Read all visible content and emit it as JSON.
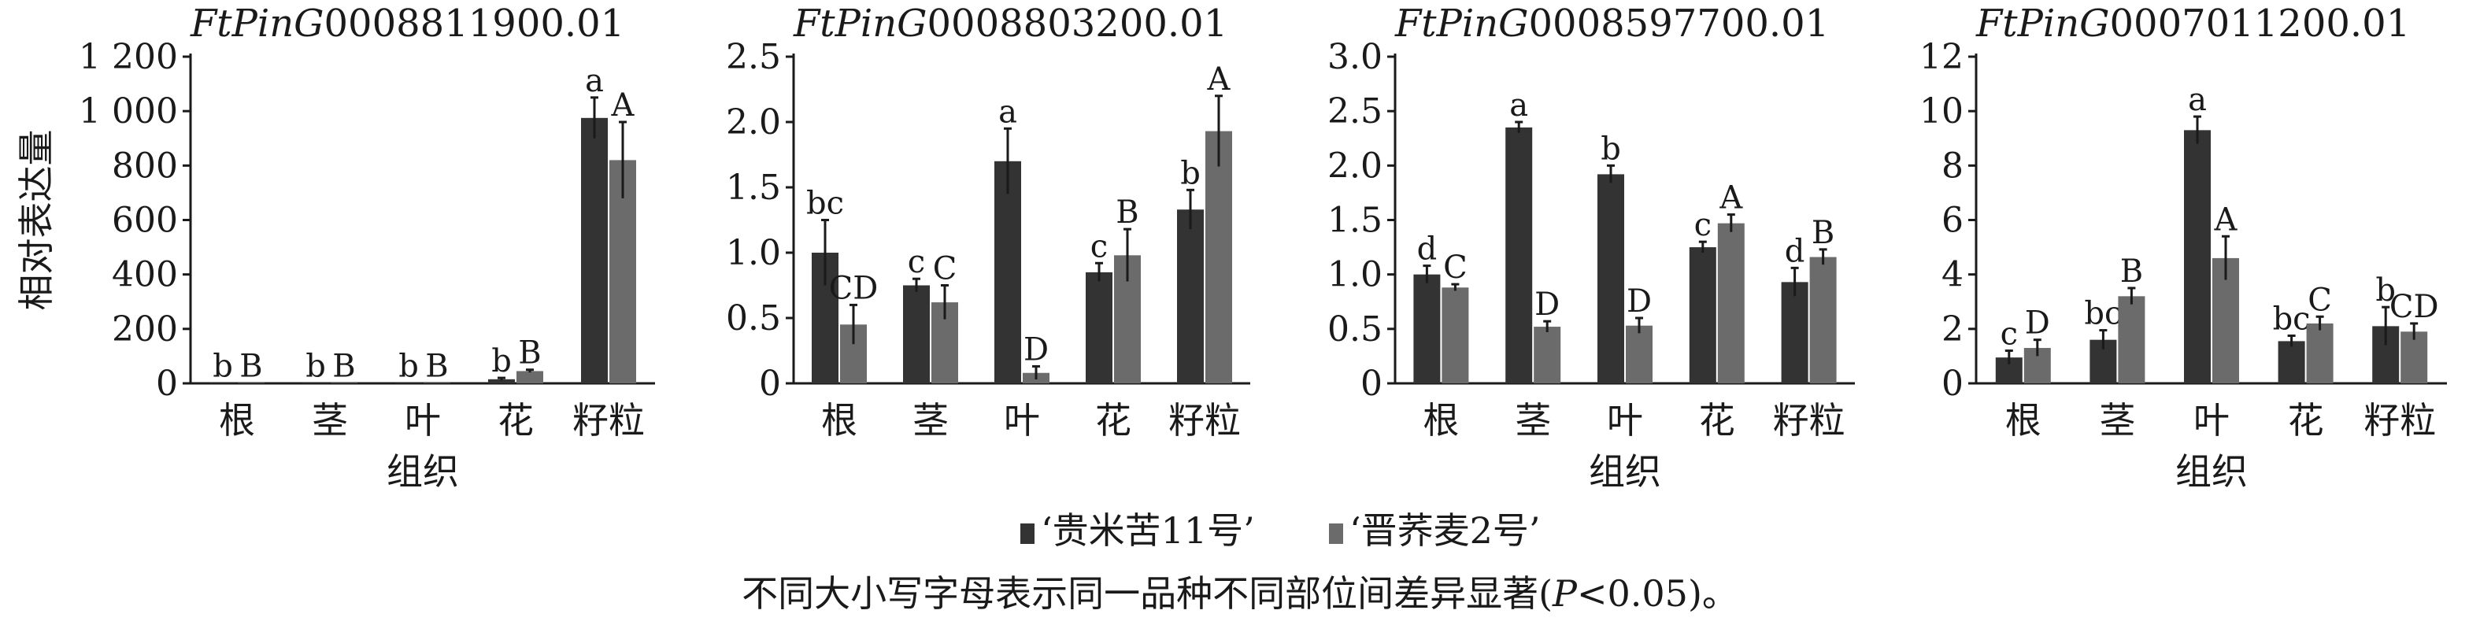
{
  "chart_data": [
    {
      "type": "bar",
      "title": "FtPinG0008811900.01",
      "title_italic": "FtPinG",
      "title_rest": "0008811900.01",
      "categories": [
        "根",
        "茎",
        "叶",
        "花",
        "籽粒"
      ],
      "xlabel": "组织",
      "ylabel": "相对表达量",
      "ylim": [
        0,
        1200
      ],
      "yticks": [
        0,
        200,
        400,
        600,
        800,
        1000,
        1200
      ],
      "ytick_labels": [
        "0",
        "200",
        "400",
        "600",
        "800",
        "1 000",
        "1 200"
      ],
      "series": [
        {
          "name": "‘贵米苦11号’",
          "values": [
            1,
            1,
            1,
            15,
            975
          ],
          "errors": [
            0,
            0,
            0,
            5,
            75
          ],
          "letters": [
            "b",
            "b",
            "b",
            "b",
            "a"
          ]
        },
        {
          "name": "‘晋荞麦2号’",
          "values": [
            1,
            1,
            1,
            45,
            820
          ],
          "errors": [
            0,
            0,
            0,
            5,
            140
          ],
          "letters": [
            "B",
            "B",
            "B",
            "B",
            "A"
          ]
        }
      ]
    },
    {
      "type": "bar",
      "title": "FtPinG0008803200.01",
      "title_italic": "FtPinG",
      "title_rest": "0008803200.01",
      "categories": [
        "根",
        "茎",
        "叶",
        "花",
        "籽粒"
      ],
      "xlabel": "",
      "ylabel": "",
      "ylim": [
        0,
        2.5
      ],
      "yticks": [
        0,
        0.5,
        1.0,
        1.5,
        2.0,
        2.5
      ],
      "ytick_labels": [
        "0",
        "0.5",
        "1.0",
        "1.5",
        "2.0",
        "2.5"
      ],
      "series": [
        {
          "name": "‘贵米苦11号’",
          "values": [
            1.0,
            0.75,
            1.7,
            0.85,
            1.33
          ],
          "errors": [
            0.25,
            0.05,
            0.25,
            0.07,
            0.15
          ],
          "letters": [
            "bc",
            "c",
            "a",
            "c",
            "b"
          ]
        },
        {
          "name": "‘晋荞麦2号’",
          "values": [
            0.45,
            0.62,
            0.08,
            0.98,
            1.93
          ],
          "errors": [
            0.15,
            0.13,
            0.05,
            0.2,
            0.27
          ],
          "letters": [
            "CD",
            "C",
            "D",
            "B",
            "A"
          ]
        }
      ]
    },
    {
      "type": "bar",
      "title": "FtPinG0008597700.01",
      "title_italic": "FtPinG",
      "title_rest": "0008597700.01",
      "categories": [
        "根",
        "茎",
        "叶",
        "花",
        "籽粒"
      ],
      "xlabel": "组织",
      "ylabel": "",
      "ylim": [
        0,
        3.0
      ],
      "yticks": [
        0,
        0.5,
        1.0,
        1.5,
        2.0,
        2.5,
        3.0
      ],
      "ytick_labels": [
        "0",
        "0.5",
        "1.0",
        "1.5",
        "2.0",
        "2.5",
        "3.0"
      ],
      "series": [
        {
          "name": "‘贵米苦11号’",
          "values": [
            1.0,
            2.35,
            1.92,
            1.25,
            0.93
          ],
          "errors": [
            0.08,
            0.05,
            0.08,
            0.05,
            0.13
          ],
          "letters": [
            "d",
            "a",
            "b",
            "c",
            "d"
          ]
        },
        {
          "name": "‘晋荞麦2号’",
          "values": [
            0.88,
            0.52,
            0.53,
            1.47,
            1.16
          ],
          "errors": [
            0.03,
            0.05,
            0.07,
            0.08,
            0.07
          ],
          "letters": [
            "C",
            "D",
            "D",
            "A",
            "B"
          ]
        }
      ]
    },
    {
      "type": "bar",
      "title": "FtPinG0007011200.01",
      "title_italic": "FtPinG",
      "title_rest": "0007011200.01",
      "categories": [
        "根",
        "茎",
        "叶",
        "花",
        "籽粒"
      ],
      "xlabel": "组织",
      "ylabel": "",
      "ylim": [
        0,
        12
      ],
      "yticks": [
        0,
        2,
        4,
        6,
        8,
        10,
        12
      ],
      "ytick_labels": [
        "0",
        "2",
        "4",
        "6",
        "8",
        "10",
        "12"
      ],
      "series": [
        {
          "name": "‘贵米苦11号’",
          "values": [
            0.95,
            1.6,
            9.3,
            1.55,
            2.1
          ],
          "errors": [
            0.25,
            0.35,
            0.5,
            0.2,
            0.7
          ],
          "letters": [
            "c",
            "bc",
            "a",
            "bc",
            "b"
          ]
        },
        {
          "name": "‘晋荞麦2号’",
          "values": [
            1.3,
            3.2,
            4.6,
            2.2,
            1.9
          ],
          "errors": [
            0.3,
            0.3,
            0.8,
            0.25,
            0.3
          ],
          "letters": [
            "D",
            "B",
            "A",
            "C",
            "CD"
          ]
        }
      ]
    }
  ],
  "legend": {
    "placement": "bottom-center",
    "items": [
      {
        "label": "‘贵米苦11号’",
        "color": "#333333"
      },
      {
        "label": "‘晋荞麦2号’",
        "color": "#6b6b6b"
      }
    ]
  },
  "note": {
    "before": "不同大小写字母表示同一品种不同部位间差异显著(",
    "italic": "P",
    "after": "<0.05)。"
  },
  "colors": {
    "series1": "#333333",
    "series2": "#6b6b6b",
    "axis": "#1a1a1a"
  }
}
